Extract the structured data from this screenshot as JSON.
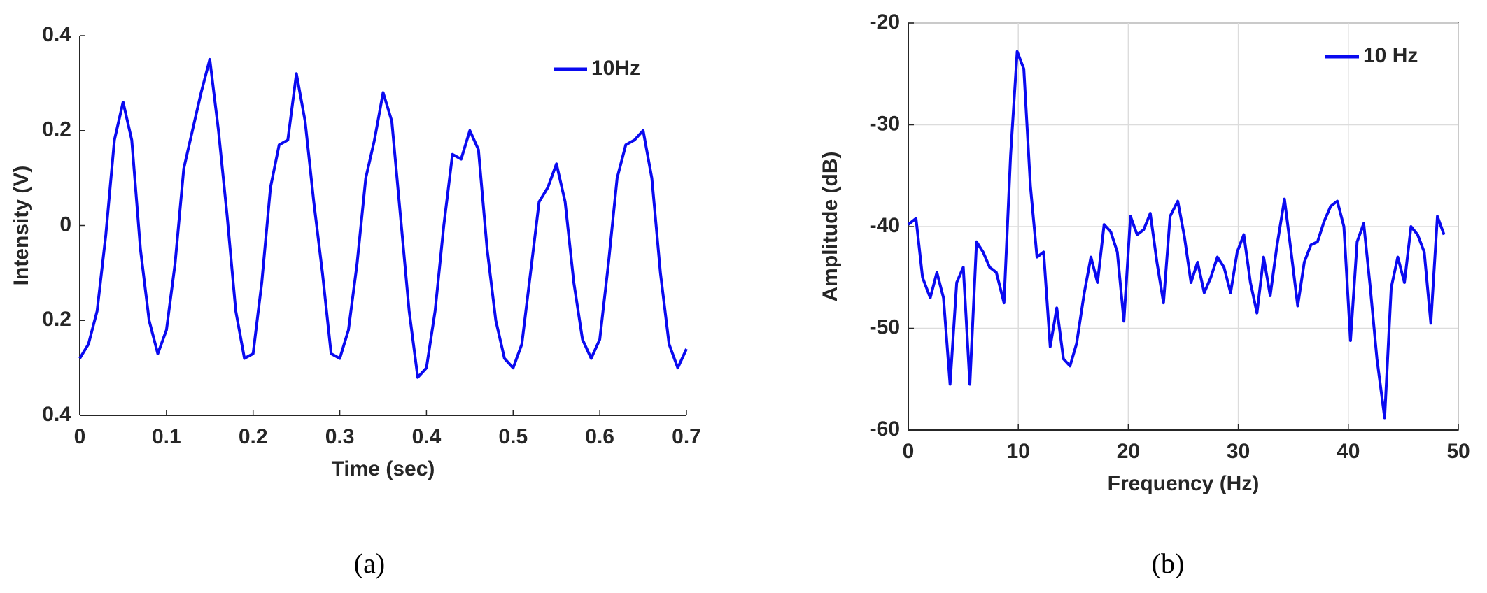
{
  "chart_data": [
    {
      "type": "line",
      "xlabel": "Time (sec)",
      "ylabel": "Intensity (V)",
      "caption": "(a)",
      "xlim": [
        0,
        0.7
      ],
      "xticks": [
        0,
        0.1,
        0.2,
        0.3,
        0.4,
        0.5,
        0.6,
        0.7
      ],
      "ylim": [
        -0.4,
        0.4
      ],
      "yticks": [
        {
          "value": -0.4,
          "label": "0.4"
        },
        {
          "value": -0.2,
          "label": "0.2"
        },
        0,
        0.2,
        0.4
      ],
      "grid": false,
      "legend": "upper right",
      "x": [
        0,
        0.01,
        0.02,
        0.03,
        0.04,
        0.05,
        0.06,
        0.07,
        0.08,
        0.09,
        0.1,
        0.11,
        0.12,
        0.13,
        0.14,
        0.15,
        0.16,
        0.17,
        0.18,
        0.19,
        0.2,
        0.21,
        0.22,
        0.23,
        0.24,
        0.25,
        0.26,
        0.27,
        0.28,
        0.29,
        0.3,
        0.31,
        0.32,
        0.33,
        0.34,
        0.35,
        0.36,
        0.37,
        0.38,
        0.39,
        0.4,
        0.41,
        0.42,
        0.43,
        0.44,
        0.45,
        0.46,
        0.47,
        0.48,
        0.49,
        0.5,
        0.51,
        0.52,
        0.53,
        0.54,
        0.55,
        0.56,
        0.57,
        0.58,
        0.59,
        0.6,
        0.61,
        0.62,
        0.63,
        0.64,
        0.65,
        0.66,
        0.67,
        0.68,
        0.69,
        0.7
      ],
      "series": [
        {
          "name": "10Hz",
          "color": "#0a0af0",
          "values": [
            -0.28,
            -0.25,
            -0.18,
            -0.02,
            0.18,
            0.26,
            0.18,
            -0.05,
            -0.2,
            -0.27,
            -0.22,
            -0.08,
            0.12,
            0.2,
            0.28,
            0.35,
            0.2,
            0.02,
            -0.18,
            -0.28,
            -0.27,
            -0.12,
            0.08,
            0.17,
            0.18,
            0.32,
            0.22,
            0.05,
            -0.1,
            -0.27,
            -0.28,
            -0.22,
            -0.08,
            0.1,
            0.18,
            0.28,
            0.22,
            0.02,
            -0.18,
            -0.32,
            -0.3,
            -0.18,
            0,
            0.15,
            0.14,
            0.2,
            0.16,
            -0.05,
            -0.2,
            -0.28,
            -0.3,
            -0.25,
            -0.1,
            0.05,
            0.08,
            0.13,
            0.05,
            -0.12,
            -0.24,
            -0.28,
            -0.24,
            -0.08,
            0.1,
            0.17,
            0.18,
            0.2,
            0.1,
            -0.1,
            -0.25,
            -0.3,
            -0.26
          ]
        }
      ]
    },
    {
      "type": "line",
      "xlabel": "Frequency (Hz)",
      "ylabel": "Amplitude (dB)",
      "caption": "(b)",
      "xlim": [
        0,
        50
      ],
      "xticks": [
        0,
        10,
        20,
        30,
        40,
        50
      ],
      "ylim": [
        -60,
        -20
      ],
      "yticks": [
        -60,
        -50,
        -40,
        -30,
        -20
      ],
      "grid": true,
      "legend": "upper right",
      "x": [
        0,
        0.7,
        1.3,
        2,
        2.6,
        3.2,
        3.8,
        4.4,
        5,
        5.6,
        6.2,
        6.8,
        7.4,
        8,
        8.7,
        9.3,
        9.9,
        10.5,
        11.1,
        11.7,
        12.3,
        12.9,
        13.5,
        14.1,
        14.7,
        15.3,
        16,
        16.6,
        17.2,
        17.8,
        18.4,
        19,
        19.6,
        20.2,
        20.8,
        21.4,
        22,
        22.6,
        23.2,
        23.8,
        24.5,
        25.1,
        25.7,
        26.3,
        26.9,
        27.5,
        28.1,
        28.7,
        29.3,
        29.9,
        30.5,
        31.1,
        31.7,
        32.3,
        32.9,
        33.5,
        34.2,
        34.8,
        35.4,
        36,
        36.6,
        37.2,
        37.8,
        38.4,
        39,
        39.6,
        40.2,
        40.8,
        41.4,
        42,
        42.6,
        43.3,
        43.9,
        44.5,
        45.1,
        45.7,
        46.3,
        46.9,
        47.5,
        48.1,
        48.7
      ],
      "series": [
        {
          "name": "10 Hz",
          "color": "#0a0af0",
          "values": [
            -39.8,
            -39.2,
            -45,
            -47,
            -44.5,
            -47,
            -55.5,
            -45.5,
            -44,
            -55.5,
            -41.5,
            -42.5,
            -44,
            -44.5,
            -47.5,
            -33,
            -22.8,
            -24.5,
            -36,
            -43,
            -42.5,
            -51.8,
            -48,
            -53,
            -53.7,
            -51.5,
            -46.5,
            -43,
            -45.5,
            -39.8,
            -40.5,
            -42.5,
            -49.3,
            -39,
            -40.8,
            -40.3,
            -38.7,
            -43.5,
            -47.5,
            -39,
            -37.5,
            -41,
            -45.5,
            -43.5,
            -46.5,
            -45,
            -43,
            -44,
            -46.5,
            -42.5,
            -40.8,
            -45.5,
            -48.5,
            -43,
            -46.8,
            -42,
            -37.3,
            -42.5,
            -47.8,
            -43.5,
            -41.8,
            -41.5,
            -39.5,
            -38,
            -37.5,
            -40,
            -51.2,
            -41.5,
            -39.7,
            -46,
            -53,
            -58.8,
            -46,
            -43,
            -45.5,
            -40,
            -40.8,
            -42.5,
            -49.5,
            -39,
            -40.8
          ]
        }
      ]
    }
  ]
}
